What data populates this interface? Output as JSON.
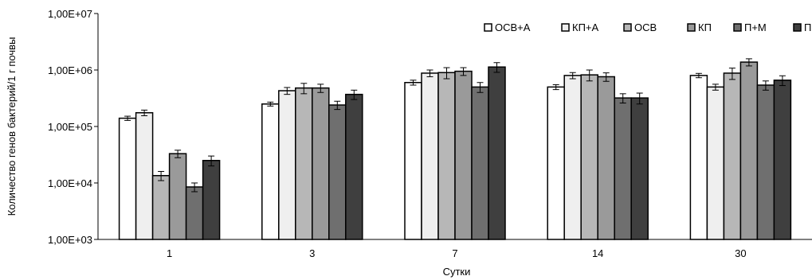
{
  "chart_data": {
    "type": "bar",
    "xlabel": "Сутки",
    "ylabel": "Количество генов бактерий/1 г почвы",
    "yscale": "log",
    "ylim": [
      1000,
      10000000
    ],
    "yticks": [
      1000,
      10000,
      100000,
      1000000,
      10000000
    ],
    "ytick_labels": [
      "1,00E+03",
      "1,00E+04",
      "1,00E+05",
      "1,00E+06",
      "1,00E+07"
    ],
    "categories": [
      "1",
      "3",
      "7",
      "14",
      "30"
    ],
    "grid": false,
    "legend_position": "top-right",
    "series": [
      {
        "name": "ОСВ+А",
        "color": "#ffffff",
        "values": [
          140000,
          250000,
          600000,
          500000,
          800000
        ],
        "errors": [
          12000,
          20000,
          60000,
          50000,
          70000
        ]
      },
      {
        "name": "КП+А",
        "color": "#efefef",
        "values": [
          175000,
          430000,
          880000,
          800000,
          500000
        ],
        "errors": [
          20000,
          60000,
          120000,
          100000,
          60000
        ]
      },
      {
        "name": "ОСВ",
        "color": "#b7b7b7",
        "values": [
          13500,
          480000,
          900000,
          820000,
          880000
        ],
        "errors": [
          2500,
          100000,
          200000,
          180000,
          200000
        ]
      },
      {
        "name": "КП",
        "color": "#9a9a9a",
        "values": [
          33000,
          480000,
          950000,
          760000,
          1380000
        ],
        "errors": [
          5000,
          80000,
          150000,
          130000,
          200000
        ]
      },
      {
        "name": "П+М",
        "color": "#6f6f6f",
        "values": [
          8500,
          240000,
          500000,
          320000,
          540000
        ],
        "errors": [
          1500,
          40000,
          100000,
          60000,
          100000
        ]
      },
      {
        "name": "П",
        "color": "#3f3f3f",
        "values": [
          25000,
          370000,
          1130000,
          320000,
          660000
        ],
        "errors": [
          5000,
          70000,
          220000,
          70000,
          130000
        ]
      }
    ]
  }
}
